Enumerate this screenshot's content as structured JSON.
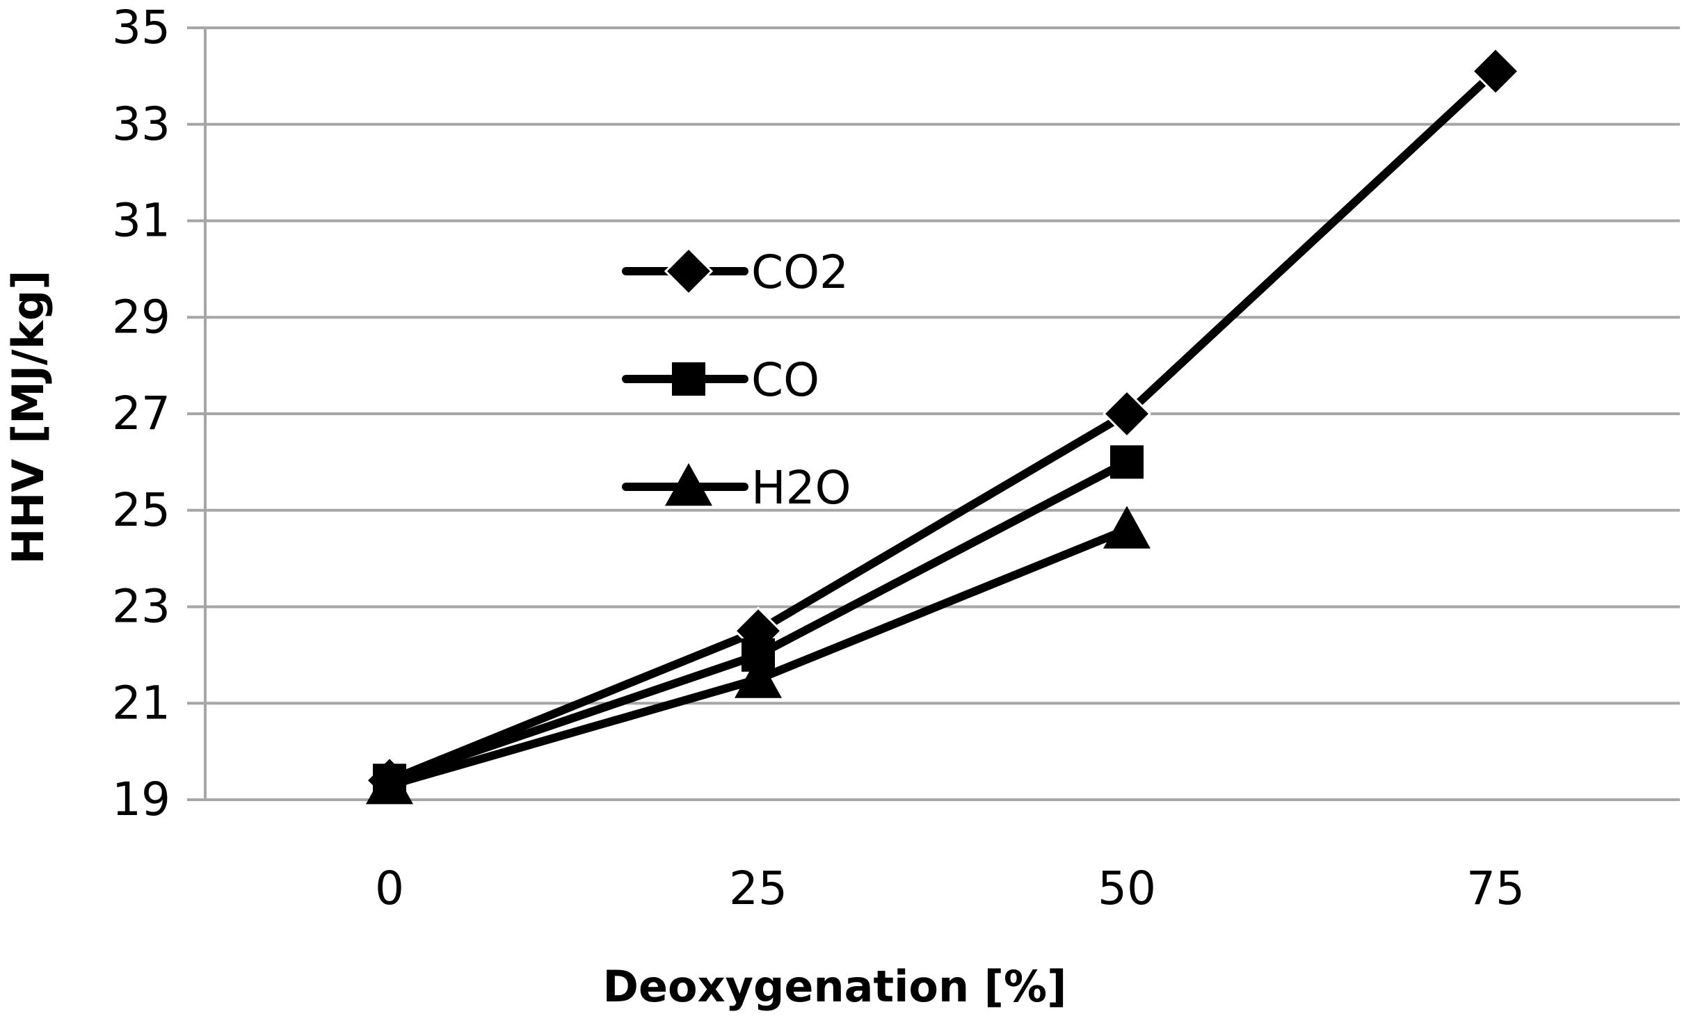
{
  "chart_data": {
    "type": "line",
    "title": "",
    "xlabel": "Deoxygenation [%]",
    "ylabel": "HHV [MJ/kg]",
    "categories": [
      "0",
      "25",
      "50",
      "75"
    ],
    "ylim": [
      19,
      35
    ],
    "yticks": [
      19,
      21,
      23,
      25,
      27,
      29,
      31,
      33,
      35
    ],
    "grid": true,
    "legend_position": "center-left",
    "series": [
      {
        "name": "CO2",
        "marker": "diamond-icon",
        "values": [
          19.4,
          22.5,
          27.0,
          34.1
        ]
      },
      {
        "name": "CO",
        "marker": "square-icon",
        "values": [
          19.4,
          22.0,
          26.0,
          null
        ]
      },
      {
        "name": "H2O",
        "marker": "triangle-icon",
        "values": [
          19.3,
          21.5,
          24.6,
          null
        ]
      }
    ],
    "colors": {
      "line": "#000000",
      "grid": "#a6a6a6",
      "axis": "#a6a6a6"
    }
  }
}
